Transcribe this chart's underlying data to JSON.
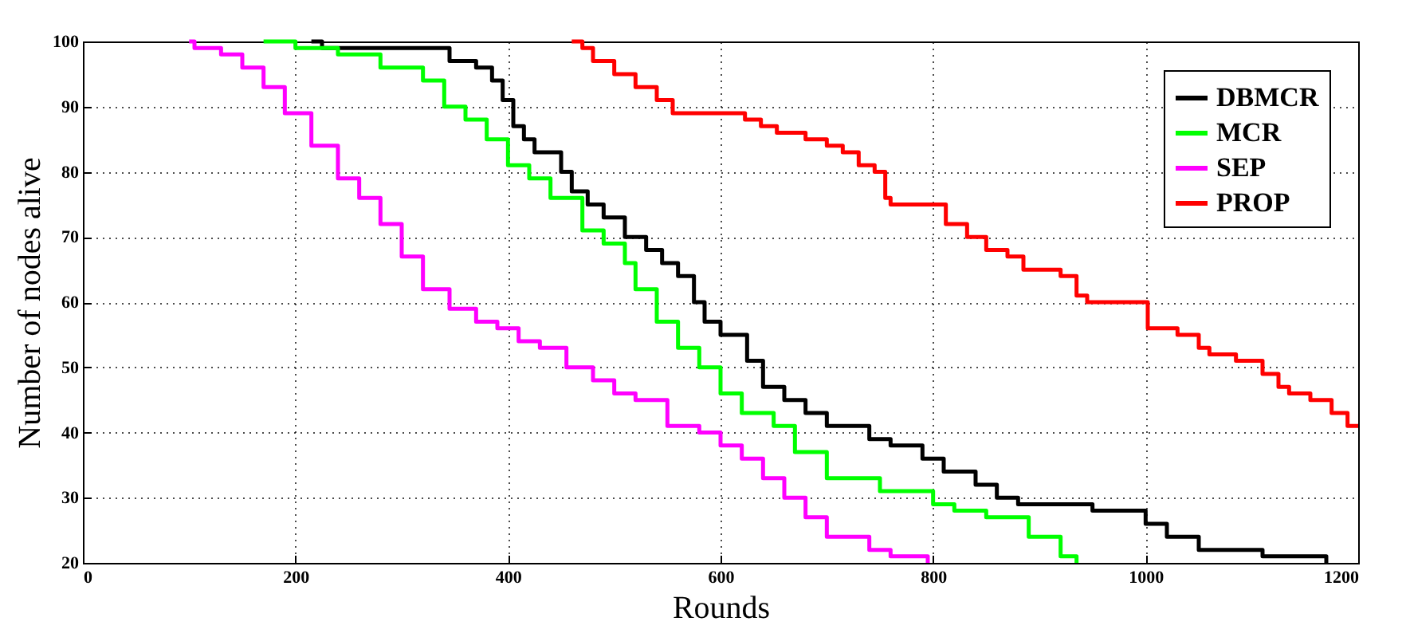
{
  "chart_data": {
    "type": "step",
    "xlabel": "Rounds",
    "ylabel": "Number of nodes alive",
    "xlim": [
      0,
      1200
    ],
    "xticks": [
      0,
      200,
      400,
      600,
      800,
      1000,
      1200
    ],
    "ylim": [
      20,
      100
    ],
    "yticks": [
      20,
      30,
      40,
      50,
      60,
      70,
      80,
      90,
      100
    ],
    "grid": true,
    "legend": "top right",
    "marker": "none",
    "line_style": "solid",
    "series": [
      {
        "name": "DBMCR",
        "color": "#000000",
        "x": [
          215,
          225,
          345,
          370,
          385,
          395,
          405,
          415,
          425,
          450,
          460,
          475,
          490,
          510,
          530,
          545,
          560,
          575,
          585,
          600,
          625,
          640,
          660,
          680,
          700,
          740,
          760,
          790,
          810,
          840,
          860,
          880,
          950,
          1000,
          1020,
          1050,
          1110,
          1170
        ],
        "values": [
          100,
          99,
          97,
          96,
          94,
          91,
          87,
          85,
          83,
          80,
          77,
          75,
          73,
          70,
          68,
          66,
          64,
          60,
          57,
          55,
          51,
          47,
          45,
          43,
          41,
          39,
          38,
          36,
          34,
          32,
          30,
          29,
          28,
          26,
          24,
          22,
          21,
          20
        ]
      },
      {
        "name": "MCR",
        "color": "#00ff00",
        "x": [
          170,
          200,
          240,
          280,
          320,
          340,
          360,
          380,
          400,
          420,
          440,
          470,
          490,
          510,
          520,
          540,
          560,
          580,
          600,
          620,
          650,
          670,
          700,
          750,
          800,
          820,
          850,
          890,
          920,
          935
        ],
        "values": [
          100,
          99,
          98,
          96,
          94,
          90,
          88,
          85,
          81,
          79,
          76,
          71,
          69,
          66,
          62,
          57,
          53,
          50,
          46,
          43,
          41,
          37,
          33,
          31,
          29,
          28,
          27,
          24,
          21,
          20
        ]
      },
      {
        "name": "SEP",
        "color": "#ff00ff",
        "x": [
          100,
          105,
          130,
          150,
          170,
          190,
          215,
          240,
          260,
          280,
          300,
          320,
          345,
          370,
          390,
          410,
          430,
          455,
          480,
          500,
          520,
          550,
          580,
          600,
          620,
          640,
          660,
          680,
          700,
          740,
          760,
          795
        ],
        "values": [
          100,
          99,
          98,
          96,
          93,
          89,
          84,
          79,
          76,
          72,
          67,
          62,
          59,
          57,
          56,
          54,
          53,
          50,
          48,
          46,
          45,
          41,
          40,
          38,
          36,
          33,
          30,
          27,
          24,
          22,
          21,
          20
        ]
      },
      {
        "name": "PROP",
        "color": "#ff0000",
        "x": [
          460,
          470,
          480,
          500,
          520,
          540,
          555,
          623,
          638,
          653,
          680,
          700,
          715,
          730,
          745,
          755,
          760,
          812,
          832,
          850,
          870,
          885,
          920,
          935,
          945,
          1002,
          1030,
          1050,
          1060,
          1085,
          1110,
          1125,
          1135,
          1155,
          1175,
          1190,
          1200
        ],
        "values": [
          100,
          99,
          97,
          95,
          93,
          91,
          89,
          88,
          87,
          86,
          85,
          84,
          83,
          81,
          80,
          76,
          75,
          72,
          70,
          68,
          67,
          65,
          64,
          61,
          60,
          56,
          55,
          53,
          52,
          51,
          49,
          47,
          46,
          45,
          43,
          41,
          41
        ]
      }
    ]
  }
}
